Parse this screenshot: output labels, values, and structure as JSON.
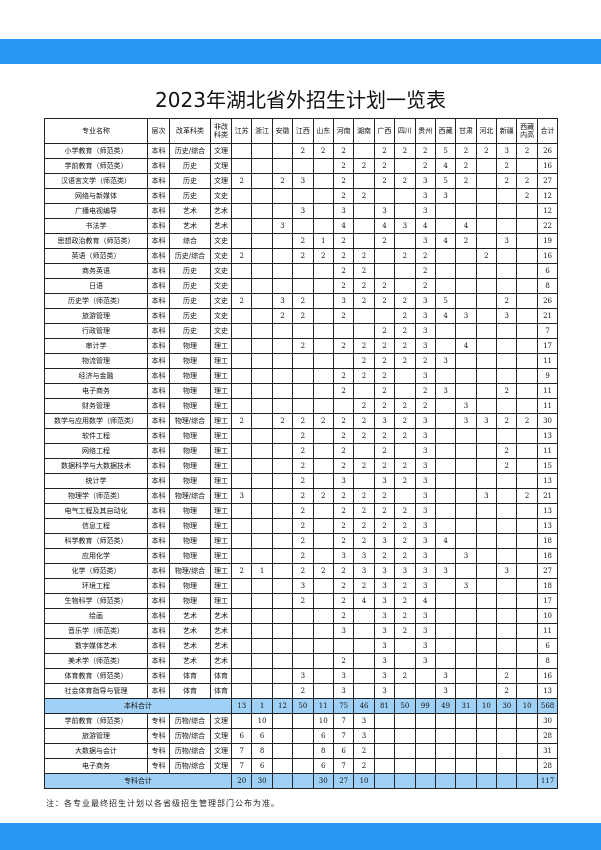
{
  "title": "2023年湖北省外招生计划一览表",
  "colors": {
    "band": "#2a97f7",
    "total_row": "#9fd0f5"
  },
  "headers": [
    "专业名称",
    "层次",
    "改革科类",
    "非改科类",
    "江苏",
    "浙江",
    "安徽",
    "江西",
    "山东",
    "河南",
    "湖南",
    "广西",
    "四川",
    "贵州",
    "西藏",
    "甘肃",
    "河北",
    "新疆",
    "西藏内高",
    "合计"
  ],
  "rows": [
    [
      "小学教育（师范类）",
      "本科",
      "历史/综合",
      "文理",
      "",
      "",
      "",
      "2",
      "2",
      "2",
      "",
      "2",
      "2",
      "2",
      "5",
      "2",
      "2",
      "3",
      "2",
      "26"
    ],
    [
      "学前教育（师范类）",
      "本科",
      "历史",
      "文理",
      "",
      "",
      "",
      "",
      "",
      "2",
      "2",
      "2",
      "",
      "2",
      "4",
      "2",
      "",
      "2",
      "",
      "16"
    ],
    [
      "汉语言文学（师范类）",
      "本科",
      "历史",
      "文理",
      "2",
      "",
      "2",
      "3",
      "",
      "2",
      "",
      "2",
      "2",
      "3",
      "5",
      "2",
      "",
      "2",
      "2",
      "27"
    ],
    [
      "网络与新媒体",
      "本科",
      "历史",
      "文史",
      "",
      "",
      "",
      "",
      "",
      "2",
      "2",
      "",
      "",
      "3",
      "3",
      "",
      "",
      "",
      "2",
      "12"
    ],
    [
      "广播电视编导",
      "本科",
      "艺术",
      "艺术",
      "",
      "",
      "",
      "3",
      "",
      "3",
      "",
      "3",
      "",
      "3",
      "",
      "",
      "",
      "",
      "",
      "12"
    ],
    [
      "书法学",
      "本科",
      "艺术",
      "艺术",
      "",
      "",
      "3",
      "",
      "",
      "4",
      "",
      "4",
      "3",
      "4",
      "",
      "4",
      "",
      "",
      "",
      "22"
    ],
    [
      "思想政治教育（师范类）",
      "本科",
      "综合",
      "文史",
      "",
      "",
      "",
      "2",
      "1",
      "2",
      "",
      "2",
      "",
      "3",
      "4",
      "2",
      "",
      "3",
      "",
      "19"
    ],
    [
      "英语（师范类）",
      "本科",
      "历史/综合",
      "文史",
      "2",
      "",
      "",
      "2",
      "2",
      "2",
      "2",
      "",
      "2",
      "2",
      "",
      "",
      "2",
      "",
      "",
      "16"
    ],
    [
      "商务英语",
      "本科",
      "历史",
      "文史",
      "",
      "",
      "",
      "",
      "",
      "2",
      "2",
      "",
      "",
      "2",
      "",
      "",
      "",
      "",
      "",
      "6"
    ],
    [
      "日语",
      "本科",
      "历史",
      "文史",
      "",
      "",
      "",
      "",
      "",
      "2",
      "2",
      "2",
      "",
      "2",
      "",
      "",
      "",
      "",
      "",
      "8"
    ],
    [
      "历史学（师范类）",
      "本科",
      "历史",
      "文史",
      "2",
      "",
      "3",
      "2",
      "",
      "3",
      "2",
      "2",
      "2",
      "3",
      "5",
      "",
      "",
      "2",
      "",
      "26"
    ],
    [
      "旅游管理",
      "本科",
      "历史",
      "文史",
      "",
      "",
      "2",
      "2",
      "",
      "2",
      "",
      "",
      "2",
      "3",
      "4",
      "3",
      "",
      "3",
      "",
      "21"
    ],
    [
      "行政管理",
      "本科",
      "历史",
      "文史",
      "",
      "",
      "",
      "",
      "",
      "",
      "",
      "2",
      "2",
      "3",
      "",
      "",
      "",
      "",
      "",
      "7"
    ],
    [
      "审计学",
      "本科",
      "物理",
      "理工",
      "",
      "",
      "",
      "2",
      "",
      "2",
      "2",
      "2",
      "2",
      "3",
      "",
      "4",
      "",
      "",
      "",
      "17"
    ],
    [
      "物流管理",
      "本科",
      "物理",
      "理工",
      "",
      "",
      "",
      "",
      "",
      "",
      "2",
      "2",
      "2",
      "2",
      "3",
      "",
      "",
      "",
      "",
      "11"
    ],
    [
      "经济与金融",
      "本科",
      "物理",
      "理工",
      "",
      "",
      "",
      "",
      "",
      "2",
      "2",
      "2",
      "",
      "3",
      "",
      "",
      "",
      "",
      "",
      "9"
    ],
    [
      "电子商务",
      "本科",
      "物理",
      "理工",
      "",
      "",
      "",
      "",
      "",
      "2",
      "",
      "2",
      "",
      "2",
      "3",
      "",
      "",
      "2",
      "",
      "11"
    ],
    [
      "财务管理",
      "本科",
      "物理",
      "理工",
      "",
      "",
      "",
      "",
      "",
      "",
      "2",
      "2",
      "2",
      "2",
      "",
      "3",
      "",
      "",
      "",
      "11"
    ],
    [
      "数学与应用数学（师范类）",
      "本科",
      "物理/综合",
      "理工",
      "2",
      "",
      "2",
      "2",
      "2",
      "2",
      "2",
      "3",
      "2",
      "3",
      "",
      "3",
      "3",
      "2",
      "2",
      "30"
    ],
    [
      "软件工程",
      "本科",
      "物理",
      "理工",
      "",
      "",
      "",
      "2",
      "",
      "2",
      "2",
      "2",
      "2",
      "3",
      "",
      "",
      "",
      "",
      "",
      "13"
    ],
    [
      "网络工程",
      "本科",
      "物理",
      "理工",
      "",
      "",
      "",
      "2",
      "",
      "2",
      "",
      "2",
      "",
      "3",
      "",
      "",
      "",
      "2",
      "",
      "11"
    ],
    [
      "数据科学与大数据技术",
      "本科",
      "物理",
      "理工",
      "",
      "",
      "",
      "2",
      "",
      "2",
      "2",
      "2",
      "2",
      "3",
      "",
      "",
      "",
      "2",
      "",
      "15"
    ],
    [
      "统计学",
      "本科",
      "物理",
      "理工",
      "",
      "",
      "",
      "2",
      "",
      "3",
      "",
      "3",
      "2",
      "3",
      "",
      "",
      "",
      "",
      "",
      "13"
    ],
    [
      "物理学（师范类）",
      "本科",
      "物理/综合",
      "理工",
      "3",
      "",
      "",
      "2",
      "2",
      "2",
      "2",
      "2",
      "",
      "3",
      "",
      "",
      "3",
      "",
      "2",
      "21"
    ],
    [
      "电气工程及其自动化",
      "本科",
      "物理",
      "理工",
      "",
      "",
      "",
      "2",
      "",
      "2",
      "2",
      "2",
      "2",
      "3",
      "",
      "",
      "",
      "",
      "",
      "13"
    ],
    [
      "信息工程",
      "本科",
      "物理",
      "理工",
      "",
      "",
      "",
      "2",
      "",
      "2",
      "2",
      "2",
      "2",
      "3",
      "",
      "",
      "",
      "",
      "",
      "13"
    ],
    [
      "科学教育（师范类）",
      "本科",
      "物理",
      "理工",
      "",
      "",
      "",
      "2",
      "",
      "2",
      "2",
      "3",
      "2",
      "3",
      "4",
      "",
      "",
      "",
      "",
      "18"
    ],
    [
      "应用化学",
      "本科",
      "物理",
      "理工",
      "",
      "",
      "",
      "2",
      "",
      "3",
      "3",
      "2",
      "2",
      "3",
      "",
      "3",
      "",
      "",
      "",
      "18"
    ],
    [
      "化学（师范类）",
      "本科",
      "物理/综合",
      "理工",
      "2",
      "1",
      "",
      "2",
      "2",
      "2",
      "3",
      "3",
      "3",
      "3",
      "3",
      "",
      "",
      "3",
      "",
      "27"
    ],
    [
      "环境工程",
      "本科",
      "物理",
      "理工",
      "",
      "",
      "",
      "3",
      "",
      "2",
      "2",
      "3",
      "2",
      "3",
      "",
      "3",
      "",
      "",
      "",
      "18"
    ],
    [
      "生物科学（师范类）",
      "本科",
      "物理",
      "理工",
      "",
      "",
      "",
      "2",
      "",
      "2",
      "4",
      "3",
      "2",
      "4",
      "",
      "",
      "",
      "",
      "",
      "17"
    ],
    [
      "绘画",
      "本科",
      "艺术",
      "艺术",
      "",
      "",
      "",
      "",
      "",
      "2",
      "",
      "3",
      "2",
      "3",
      "",
      "",
      "",
      "",
      "",
      "10"
    ],
    [
      "音乐学（师范类）",
      "本科",
      "艺术",
      "艺术",
      "",
      "",
      "",
      "",
      "",
      "3",
      "",
      "3",
      "2",
      "3",
      "",
      "",
      "",
      "",
      "",
      "11"
    ],
    [
      "数字媒体艺术",
      "本科",
      "艺术",
      "艺术",
      "",
      "",
      "",
      "",
      "",
      "",
      "",
      "3",
      "",
      "3",
      "",
      "",
      "",
      "",
      "",
      "6"
    ],
    [
      "美术学（师范类）",
      "本科",
      "艺术",
      "艺术",
      "",
      "",
      "",
      "",
      "",
      "2",
      "",
      "3",
      "",
      "3",
      "",
      "",
      "",
      "",
      "",
      "8"
    ],
    [
      "体育教育（师范类）",
      "本科",
      "体育",
      "体育",
      "",
      "",
      "",
      "3",
      "",
      "3",
      "",
      "3",
      "2",
      "",
      "3",
      "",
      "",
      "2",
      "",
      "16"
    ],
    [
      "社会体育指导与管理",
      "本科",
      "体育",
      "体育",
      "",
      "",
      "",
      "2",
      "",
      "3",
      "",
      "3",
      "",
      "",
      "3",
      "",
      "",
      "2",
      "",
      "13"
    ]
  ],
  "benke_total": {
    "label": "本科合计",
    "values": [
      "13",
      "1",
      "12",
      "50",
      "11",
      "75",
      "46",
      "81",
      "50",
      "99",
      "49",
      "31",
      "10",
      "30",
      "10",
      "568"
    ]
  },
  "zhuanke_rows": [
    [
      "学前教育（师范类）",
      "专科",
      "历物/综合",
      "文理",
      "",
      "10",
      "",
      "",
      "10",
      "7",
      "3",
      "",
      "",
      "",
      "",
      "",
      "",
      "",
      "",
      "30"
    ],
    [
      "旅游管理",
      "专科",
      "历物/综合",
      "文理",
      "6",
      "6",
      "",
      "",
      "6",
      "7",
      "3",
      "",
      "",
      "",
      "",
      "",
      "",
      "",
      "",
      "28"
    ],
    [
      "大数据与会计",
      "专科",
      "历物/综合",
      "文理",
      "7",
      "8",
      "",
      "",
      "8",
      "6",
      "2",
      "",
      "",
      "",
      "",
      "",
      "",
      "",
      "",
      "31"
    ],
    [
      "电子商务",
      "专科",
      "历物/综合",
      "文理",
      "7",
      "6",
      "",
      "",
      "6",
      "7",
      "2",
      "",
      "",
      "",
      "",
      "",
      "",
      "",
      "",
      "28"
    ]
  ],
  "zhuanke_total": {
    "label": "专科合计",
    "values": [
      "20",
      "30",
      "",
      "",
      "30",
      "27",
      "10",
      "",
      "",
      "",
      "",
      "",
      "",
      "",
      "",
      "117"
    ]
  },
  "note": "注：各专业最终招生计划以各省级招生管理部门公布为准。"
}
